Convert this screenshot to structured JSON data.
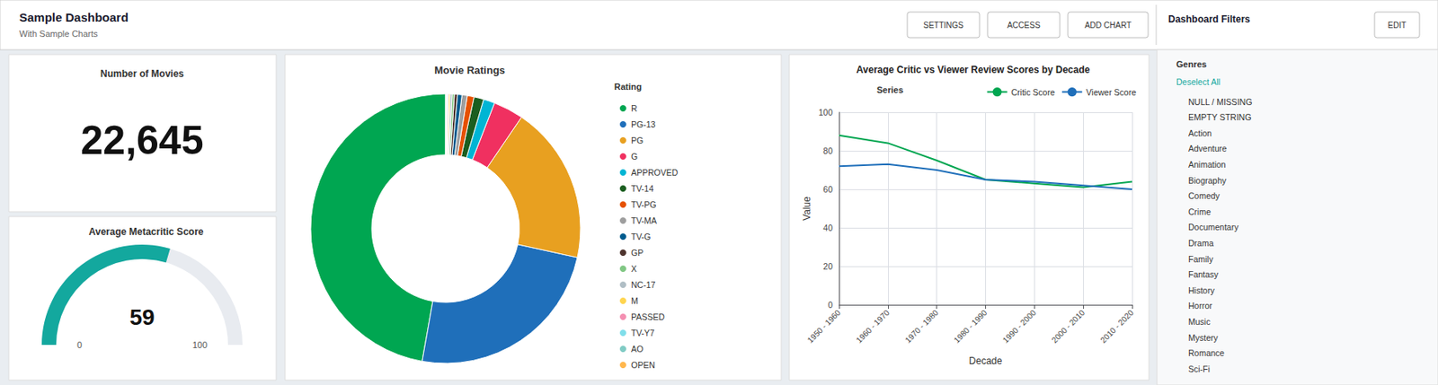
{
  "chart_data": [
    {
      "type": "header",
      "title": "Sample Dashboard",
      "subtitle": "With Sample Charts",
      "annotations": [
        "SETTINGS",
        "ACCESS",
        "ADD CHART",
        "EDIT"
      ]
    },
    {
      "type": "kpi",
      "title": "Number of Movies",
      "values": [
        22645
      ],
      "value_labels": [
        "22,645"
      ]
    },
    {
      "type": "gauge",
      "title": "Average Metacritic Score",
      "values": [
        59
      ],
      "ylim": [
        0,
        100
      ],
      "yticks": [
        0,
        100
      ],
      "color": "#13a89e"
    },
    {
      "type": "pie",
      "title": "Movie Ratings",
      "annotations": [
        "Rating"
      ],
      "legend": "right",
      "categories": [
        "R",
        "PG-13",
        "PG",
        "G",
        "APPROVED",
        "TV-14",
        "TV-PG",
        "TV-MA",
        "TV-G",
        "GP",
        "X",
        "NC-17",
        "M",
        "PASSED",
        "TV-Y7",
        "AO",
        "OPEN"
      ],
      "values": [
        10476,
        5400,
        4200,
        800,
        300,
        260,
        180,
        140,
        120,
        80,
        60,
        50,
        40,
        30,
        25,
        15,
        10
      ],
      "colors": [
        "#00a651",
        "#1f6fba",
        "#e8a020",
        "#f03060",
        "#00b5d4",
        "#1b5e20",
        "#e65100",
        "#9e9e9e",
        "#005b8e",
        "#4e342e",
        "#81c784",
        "#b0bec5",
        "#ffd54f",
        "#f48fb1",
        "#80deea",
        "#80cbc4",
        "#ffb74d"
      ]
    },
    {
      "type": "line",
      "title": "Average Critic vs Viewer Review Scores by Decade",
      "xlabel": "Decade",
      "ylabel": "Value",
      "annotations": [
        "Series"
      ],
      "legend": "top-right",
      "grid": true,
      "categories": [
        "1950 - 1960",
        "1960 - 1970",
        "1970 - 1980",
        "1980 - 1990",
        "1990 - 2000",
        "2000 - 2010",
        "2010 - 2020"
      ],
      "series": [
        {
          "name": "Critic Score",
          "color": "#00a651",
          "values": [
            88,
            84,
            75,
            65,
            63,
            61,
            64
          ]
        },
        {
          "name": "Viewer Score",
          "color": "#1f6fba",
          "values": [
            72,
            73,
            70,
            65,
            64,
            62,
            60
          ]
        }
      ],
      "ylim": [
        0,
        100
      ],
      "yticks": [
        0,
        20,
        40,
        60,
        80,
        100
      ]
    },
    {
      "type": "filters",
      "title": "Dashboard Filters",
      "subtitle": "Genres",
      "categories": [
        "Deselect All",
        "NULL / MISSING",
        "EMPTY STRING",
        "Action",
        "Adventure",
        "Animation",
        "Biography",
        "Comedy",
        "Crime",
        "Documentary",
        "Drama",
        "Family",
        "Fantasy",
        "History",
        "Horror",
        "Music",
        "Mystery",
        "Romance",
        "Sci-Fi"
      ]
    }
  ]
}
